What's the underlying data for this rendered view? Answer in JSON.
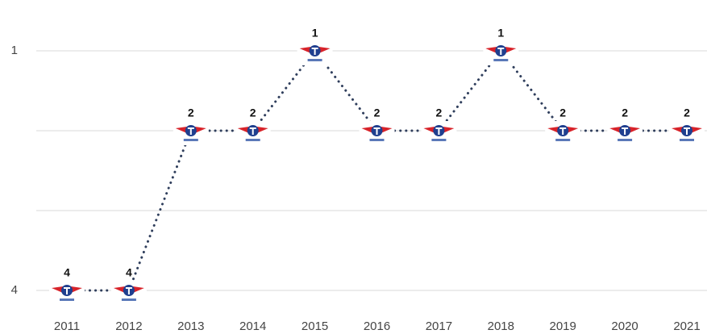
{
  "chart_data": {
    "type": "line",
    "categories": [
      "2011",
      "2012",
      "2013",
      "2014",
      "2015",
      "2016",
      "2017",
      "2018",
      "2019",
      "2020",
      "2021"
    ],
    "series": [
      {
        "color": "#2f3e5c",
        "values": [
          4,
          4,
          2,
          2,
          1,
          2,
          2,
          1,
          2,
          2,
          2
        ]
      }
    ],
    "ylim": [
      4,
      1
    ],
    "yticks": [
      1,
      4
    ],
    "grid_lines": [
      1,
      2,
      3,
      4
    ],
    "grid": true
  }
}
